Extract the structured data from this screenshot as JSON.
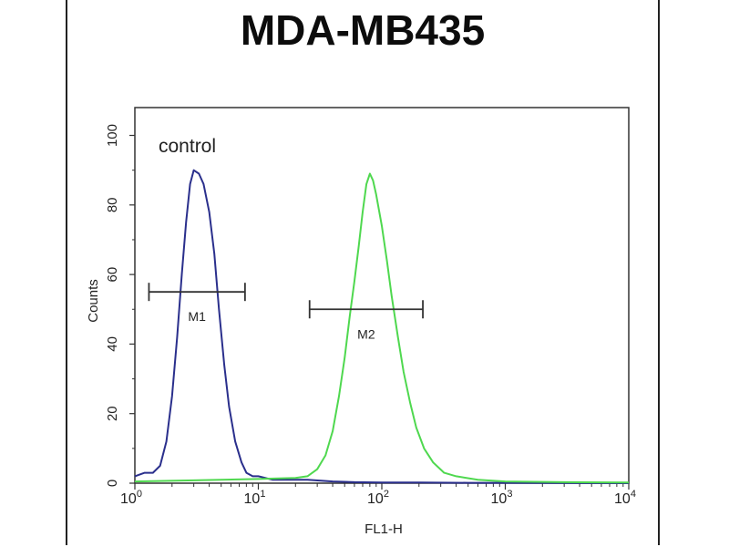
{
  "chart_data": {
    "type": "line",
    "title": "MDA-MB435",
    "xlabel": "FL1-H",
    "ylabel": "Counts",
    "x_scale": "log",
    "xlim": [
      1,
      10000
    ],
    "ylim": [
      0,
      108
    ],
    "x_ticks": [
      {
        "base": "10",
        "exp": "0",
        "value": 1
      },
      {
        "base": "10",
        "exp": "1",
        "value": 10
      },
      {
        "base": "10",
        "exp": "2",
        "value": 100
      },
      {
        "base": "10",
        "exp": "3",
        "value": 1000
      },
      {
        "base": "10",
        "exp": "4",
        "value": 10000
      }
    ],
    "y_ticks": [
      "0",
      "20",
      "40",
      "60",
      "80",
      "100"
    ],
    "grid": false,
    "annotation": "control",
    "series": [
      {
        "color": "#2a2f8c",
        "points": [
          [
            1.0,
            2
          ],
          [
            1.2,
            3
          ],
          [
            1.4,
            3
          ],
          [
            1.6,
            5
          ],
          [
            1.8,
            12
          ],
          [
            2.0,
            25
          ],
          [
            2.2,
            42
          ],
          [
            2.4,
            60
          ],
          [
            2.6,
            75
          ],
          [
            2.8,
            86
          ],
          [
            3.0,
            90
          ],
          [
            3.3,
            89
          ],
          [
            3.6,
            86
          ],
          [
            4.0,
            78
          ],
          [
            4.4,
            66
          ],
          [
            4.8,
            50
          ],
          [
            5.3,
            34
          ],
          [
            5.8,
            22
          ],
          [
            6.5,
            12
          ],
          [
            7.3,
            6
          ],
          [
            8.0,
            3
          ],
          [
            9.0,
            2
          ],
          [
            10,
            2
          ],
          [
            13,
            1
          ],
          [
            18,
            1
          ],
          [
            25,
            1
          ],
          [
            40,
            0.5
          ],
          [
            60,
            0.3
          ],
          [
            100,
            0.2
          ],
          [
            200,
            0.2
          ],
          [
            500,
            0.1
          ],
          [
            1000,
            0.1
          ],
          [
            10000,
            0
          ]
        ]
      },
      {
        "color": "#4fd84f",
        "points": [
          [
            1.0,
            0.5
          ],
          [
            3,
            0.8
          ],
          [
            10,
            1.2
          ],
          [
            20,
            1.5
          ],
          [
            25,
            2
          ],
          [
            30,
            4
          ],
          [
            35,
            8
          ],
          [
            40,
            15
          ],
          [
            45,
            25
          ],
          [
            50,
            36
          ],
          [
            55,
            48
          ],
          [
            60,
            58
          ],
          [
            65,
            68
          ],
          [
            70,
            78
          ],
          [
            75,
            86
          ],
          [
            80,
            89
          ],
          [
            85,
            87
          ],
          [
            90,
            83
          ],
          [
            100,
            74
          ],
          [
            110,
            64
          ],
          [
            120,
            54
          ],
          [
            135,
            42
          ],
          [
            150,
            32
          ],
          [
            170,
            23
          ],
          [
            190,
            16
          ],
          [
            220,
            10
          ],
          [
            260,
            6
          ],
          [
            320,
            3
          ],
          [
            400,
            2
          ],
          [
            600,
            1
          ],
          [
            1000,
            0.5
          ],
          [
            3000,
            0.3
          ],
          [
            10000,
            0.2
          ]
        ]
      }
    ],
    "gates": [
      {
        "label": "M1",
        "x_start": 1.3,
        "x_end": 7.8,
        "y": 55
      },
      {
        "label": "M2",
        "x_start": 26,
        "x_end": 215,
        "y": 50
      }
    ]
  }
}
